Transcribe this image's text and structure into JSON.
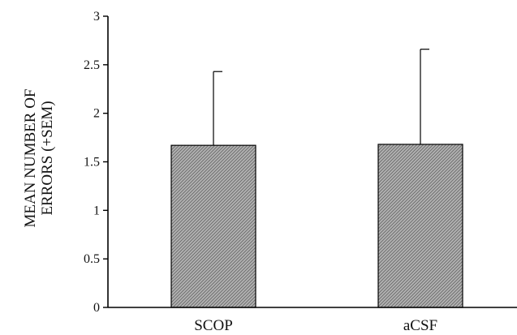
{
  "chart_data": {
    "type": "bar",
    "title": "",
    "xlabel": "",
    "ylabel_lines": [
      "MEAN NUMBER OF",
      "ERRORS (+SEM)"
    ],
    "categories": [
      "SCOP",
      "aCSF"
    ],
    "values": [
      1.67,
      1.68
    ],
    "error_plus": [
      0.76,
      0.98
    ],
    "ylim": [
      0,
      3
    ],
    "yticks": [
      0,
      0.5,
      1,
      1.5,
      2,
      2.5,
      3
    ],
    "ytick_labels": [
      "0",
      "0.5",
      "1",
      "1.5",
      "2",
      "2.5",
      "3"
    ],
    "grid": false,
    "legend": "none",
    "bar_color": "#9a9a9a",
    "bar_pattern": "diagonal-hatch"
  }
}
